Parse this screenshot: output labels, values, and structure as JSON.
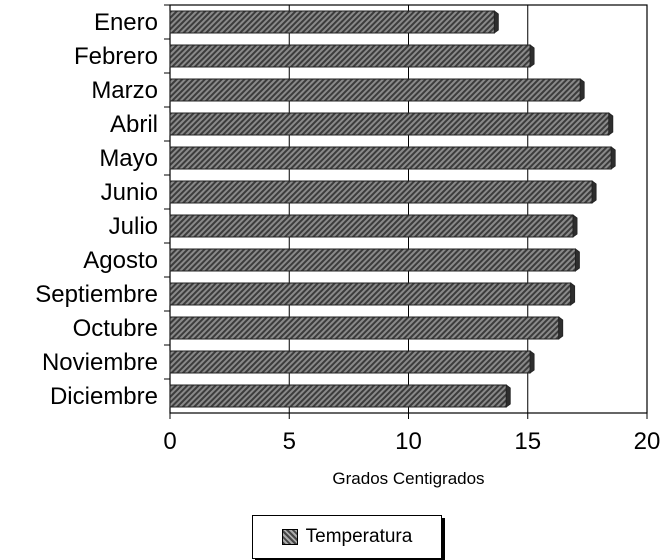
{
  "chart_data": {
    "type": "bar",
    "orientation": "horizontal",
    "categories": [
      "Enero",
      "Febrero",
      "Marzo",
      "Abril",
      "Mayo",
      "Junio",
      "Julio",
      "Agosto",
      "Septiembre",
      "Octubre",
      "Noviembre",
      "Diciembre"
    ],
    "series": [
      {
        "name": "Temperatura",
        "values": [
          13.6,
          15.1,
          17.2,
          18.4,
          18.5,
          17.7,
          16.9,
          17.0,
          16.8,
          16.3,
          15.1,
          14.1
        ]
      }
    ],
    "xlabel": "Grados Centigrados",
    "ylabel": "",
    "xlim": [
      0,
      20
    ],
    "xticks": [
      "0",
      "5",
      "10",
      "15",
      "20"
    ],
    "grid": "vertical",
    "legend": "bottom-center",
    "bar_color": "#5a5a5a"
  }
}
